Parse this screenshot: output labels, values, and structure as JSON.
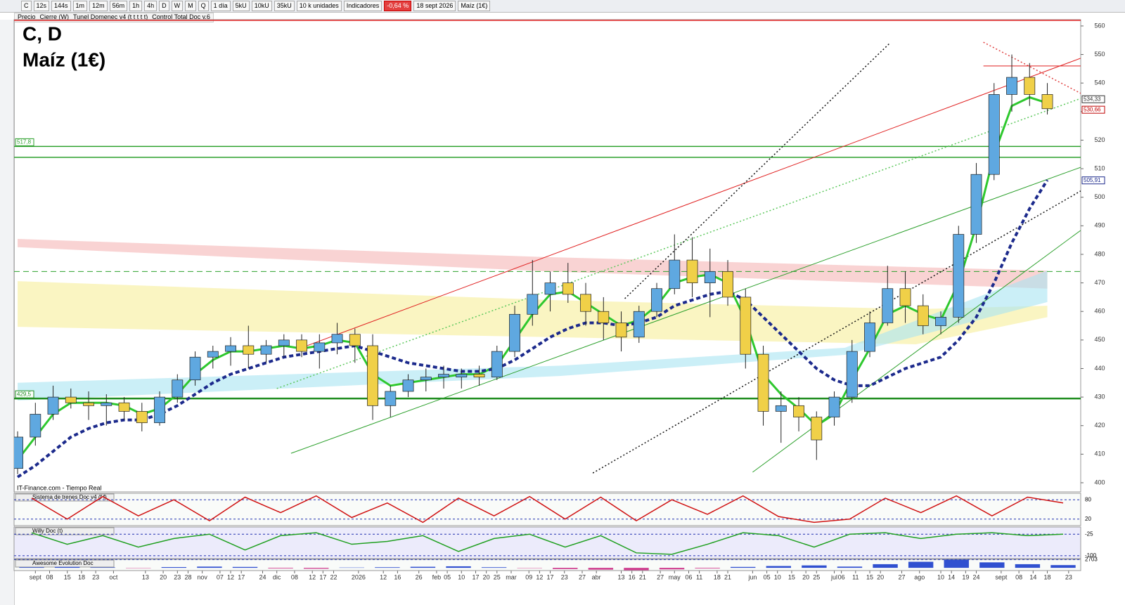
{
  "toolbar": {
    "symbol": "C",
    "timeframes": [
      "12s",
      "144s",
      "1m",
      "12m",
      "56m",
      "1h",
      "4h",
      "D",
      "W",
      "M",
      "Q"
    ],
    "period": "1 día",
    "units": [
      "5kU",
      "10kU",
      "35kU"
    ],
    "units_label": "10 k unidades",
    "indicators": "Indicadores",
    "change": "-0,64 %",
    "date": "18 sept 2026",
    "instrument": "Maíz (1€)"
  },
  "legend_bar": [
    "Precio",
    "Cierre (W)",
    "Tunel Domenec v4 (t t t t t)",
    "Control Total Doc v.6"
  ],
  "watermark": "IT-Finance.com - Tiempo Real",
  "chart_data": {
    "type": "candlestick",
    "title": "C, D",
    "subtitle": "Maíz (1€)",
    "x": [
      0,
      5,
      10,
      15,
      20,
      25,
      30,
      35,
      40,
      45,
      50,
      55,
      60,
      65,
      70,
      75,
      80,
      85,
      90,
      95,
      100,
      105,
      110,
      115,
      120,
      125,
      130,
      135,
      140,
      145,
      150,
      155,
      160,
      165,
      170,
      175,
      180,
      185,
      190,
      195,
      200,
      205,
      210,
      215,
      220,
      225,
      230,
      235,
      240,
      245,
      250,
      255,
      260,
      265,
      270,
      275,
      280,
      285,
      290
    ],
    "open": [
      405,
      416,
      424,
      430,
      428,
      427,
      428,
      425,
      421,
      430,
      436,
      444,
      446,
      448,
      445,
      448,
      450,
      446,
      449,
      452,
      448,
      427,
      432,
      436,
      437,
      437,
      438,
      437,
      446,
      459,
      466,
      470,
      466,
      460,
      456,
      451,
      460,
      468,
      478,
      470,
      474,
      465,
      445,
      425,
      427,
      423,
      423,
      430,
      446,
      456,
      468,
      462,
      455,
      458,
      487,
      508,
      536,
      542,
      536
    ],
    "high": [
      418,
      428,
      434,
      433,
      432,
      431,
      430,
      428,
      432,
      438,
      446,
      448,
      451,
      455,
      450,
      452,
      452,
      452,
      456,
      454,
      452,
      434,
      438,
      440,
      441,
      440,
      441,
      448,
      462,
      478,
      474,
      477,
      470,
      465,
      460,
      462,
      470,
      487,
      486,
      482,
      478,
      468,
      448,
      432,
      430,
      425,
      432,
      450,
      460,
      476,
      474,
      466,
      460,
      490,
      512,
      540,
      550,
      547,
      540
    ],
    "low": [
      403,
      413,
      422,
      426,
      422,
      420,
      422,
      418,
      420,
      428,
      434,
      440,
      441,
      440,
      442,
      444,
      444,
      440,
      445,
      442,
      422,
      423,
      430,
      432,
      433,
      433,
      434,
      436,
      444,
      455,
      460,
      463,
      455,
      450,
      446,
      449,
      458,
      466,
      465,
      458,
      462,
      440,
      420,
      414,
      418,
      408,
      420,
      428,
      444,
      455,
      456,
      452,
      452,
      456,
      484,
      506,
      530,
      532,
      529
    ],
    "close": [
      416,
      424,
      430,
      428,
      427,
      428,
      425,
      421,
      430,
      436,
      444,
      446,
      448,
      445,
      448,
      450,
      446,
      449,
      452,
      448,
      427,
      432,
      436,
      437,
      438,
      438,
      437,
      446,
      459,
      466,
      470,
      466,
      460,
      456,
      451,
      460,
      468,
      478,
      470,
      474,
      465,
      445,
      425,
      427,
      423,
      415,
      430,
      446,
      456,
      468,
      462,
      455,
      458,
      487,
      508,
      536,
      542,
      536,
      531
    ],
    "up_color": "#5fa8e0",
    "down_color": "#f0d048",
    "xlim": [
      -1,
      299.4
    ],
    "ylim": [
      396.8,
      562.2
    ],
    "yticks": [
      400,
      410,
      420,
      430,
      440,
      450,
      460,
      470,
      480,
      490,
      500,
      510,
      520,
      530,
      540,
      550,
      560
    ],
    "xticks": [
      {
        "value": 5,
        "label": "sept"
      },
      {
        "value": 9,
        "label": "08"
      },
      {
        "value": 14,
        "label": "15"
      },
      {
        "value": 18,
        "label": "18"
      },
      {
        "value": 22,
        "label": "23"
      },
      {
        "value": 27,
        "label": "oct"
      },
      {
        "value": 36,
        "label": "13"
      },
      {
        "value": 41,
        "label": "20"
      },
      {
        "value": 45,
        "label": "23"
      },
      {
        "value": 48,
        "label": "28"
      },
      {
        "value": 52,
        "label": "nov"
      },
      {
        "value": 57,
        "label": "07"
      },
      {
        "value": 60,
        "label": "12"
      },
      {
        "value": 63,
        "label": "17"
      },
      {
        "value": 69,
        "label": "24"
      },
      {
        "value": 73,
        "label": "dic"
      },
      {
        "value": 78,
        "label": "08"
      },
      {
        "value": 83,
        "label": "12"
      },
      {
        "value": 86,
        "label": "17"
      },
      {
        "value": 89,
        "label": "22"
      },
      {
        "value": 96,
        "label": "2026"
      },
      {
        "value": 103,
        "label": "12"
      },
      {
        "value": 107,
        "label": "16"
      },
      {
        "value": 113,
        "label": "26"
      },
      {
        "value": 118,
        "label": "feb"
      },
      {
        "value": 121,
        "label": "05"
      },
      {
        "value": 125,
        "label": "10"
      },
      {
        "value": 129,
        "label": "17"
      },
      {
        "value": 132,
        "label": "20"
      },
      {
        "value": 135,
        "label": "25"
      },
      {
        "value": 139,
        "label": "mar"
      },
      {
        "value": 144,
        "label": "09"
      },
      {
        "value": 147,
        "label": "12"
      },
      {
        "value": 150,
        "label": "17"
      },
      {
        "value": 154,
        "label": "23"
      },
      {
        "value": 159,
        "label": "27"
      },
      {
        "value": 163,
        "label": "abr"
      },
      {
        "value": 170,
        "label": "13"
      },
      {
        "value": 173,
        "label": "16"
      },
      {
        "value": 176,
        "label": "21"
      },
      {
        "value": 181,
        "label": "27"
      },
      {
        "value": 185,
        "label": "may"
      },
      {
        "value": 189,
        "label": "06"
      },
      {
        "value": 192,
        "label": "11"
      },
      {
        "value": 197,
        "label": "18"
      },
      {
        "value": 200,
        "label": "21"
      },
      {
        "value": 207,
        "label": "jun"
      },
      {
        "value": 211,
        "label": "05"
      },
      {
        "value": 214,
        "label": "10"
      },
      {
        "value": 218,
        "label": "15"
      },
      {
        "value": 222,
        "label": "20"
      },
      {
        "value": 225,
        "label": "25"
      },
      {
        "value": 230,
        "label": "jul"
      },
      {
        "value": 232,
        "label": "06"
      },
      {
        "value": 236,
        "label": "11"
      },
      {
        "value": 240,
        "label": "15"
      },
      {
        "value": 243,
        "label": "20"
      },
      {
        "value": 249,
        "label": "27"
      },
      {
        "value": 254,
        "label": "ago"
      },
      {
        "value": 260,
        "label": "10"
      },
      {
        "value": 263,
        "label": "14"
      },
      {
        "value": 267,
        "label": "19"
      },
      {
        "value": 270,
        "label": "24"
      },
      {
        "value": 277,
        "label": "sept"
      },
      {
        "value": 282,
        "label": "08"
      },
      {
        "value": 286,
        "label": "14"
      },
      {
        "value": 290,
        "label": "18"
      },
      {
        "value": 296,
        "label": "23"
      }
    ],
    "bands": [
      {
        "color": "#f5b5b5",
        "x": [
          0,
          150,
          290
        ],
        "upper": [
          485.4,
          479,
          474.3
        ],
        "lower": [
          482.5,
          474,
          468
        ]
      },
      {
        "color": "#f7ef9a",
        "x": [
          0,
          150,
          253,
          290
        ],
        "upper": [
          470.6,
          464,
          460.8,
          462
        ],
        "lower": [
          454.6,
          451,
          448.5,
          458
        ]
      },
      {
        "color": "#a8e4f2",
        "x": [
          0,
          153,
          233,
          290
        ],
        "upper": [
          435,
          441,
          447.3,
          474.3
        ],
        "lower": [
          428.8,
          437.4,
          444.8,
          463.3
        ]
      }
    ],
    "overlays": [
      {
        "color": "#2ec82e",
        "width": 3,
        "dash": false,
        "values": [
          408,
          416,
          424,
          428,
          428,
          428,
          427,
          424,
          426,
          431,
          438,
          443,
          446,
          446,
          447,
          448,
          447,
          448,
          450,
          449,
          438,
          434,
          435,
          436,
          437,
          438,
          438,
          441,
          450,
          459,
          466,
          467,
          463,
          459,
          455,
          457,
          462,
          470,
          472,
          473,
          470,
          457,
          438,
          431,
          426,
          420,
          424,
          436,
          447,
          459,
          462,
          459,
          457,
          470,
          490,
          515,
          532,
          535,
          533
        ]
      },
      {
        "color": "#1c2a8c",
        "width": 4,
        "dash": true,
        "values": [
          402,
          406,
          411,
          416,
          419,
          421,
          422,
          422,
          424,
          427,
          431,
          435,
          438,
          440,
          442,
          444,
          445,
          446,
          447,
          448,
          446,
          444,
          442,
          441,
          440,
          439,
          439,
          440,
          443,
          447,
          451,
          454,
          456,
          456,
          455,
          456,
          458,
          462,
          464,
          466,
          467,
          464,
          458,
          452,
          446,
          440,
          436,
          434,
          434,
          437,
          440,
          442,
          444,
          450,
          458,
          470,
          484,
          496,
          506
        ]
      }
    ],
    "trendlines": [
      {
        "color": "#e02020",
        "dash": false,
        "x": [
          80,
          299.4
        ],
        "y": [
          447.3,
          548.7
        ]
      },
      {
        "color": "#2ca02c",
        "dash": false,
        "x": [
          77,
          299.4
        ],
        "y": [
          410.3,
          510.5
        ]
      },
      {
        "color": "#2ca02c",
        "dash": false,
        "x": [
          207,
          299.4
        ],
        "y": [
          403.7,
          488.4
        ]
      },
      {
        "color": "#5cc85c",
        "dash": true,
        "x": [
          73,
          299.4
        ],
        "y": [
          433,
          534.6
        ]
      },
      {
        "color": "#111111",
        "dash": true,
        "x": [
          171,
          245.5
        ],
        "y": [
          464.5,
          553.8
        ]
      },
      {
        "color": "#111111",
        "dash": true,
        "x": [
          162,
          299.4
        ],
        "y": [
          403.4,
          502.2
        ]
      },
      {
        "color": "#e04040",
        "dash": true,
        "x": [
          272,
          299.4
        ],
        "y": [
          554.3,
          536.4
        ]
      },
      {
        "color": "#e02020",
        "dash": false,
        "x": [
          272,
          299.4
        ],
        "y": [
          546,
          546
        ]
      }
    ],
    "levels": [
      {
        "value": 562,
        "color": "#e02020",
        "width": 1.5
      },
      {
        "value": 517.8,
        "label": "517,8",
        "color": "#2ca02c",
        "width": 1.5
      },
      {
        "value": 514,
        "color": "#2ca02c",
        "width": 1.5
      },
      {
        "value": 474,
        "color": "#2ca02c",
        "width": 1,
        "dash": true
      },
      {
        "value": 429.5,
        "label": "429,5",
        "color": "#1e8c1e",
        "width": 2.5
      }
    ],
    "price_labels": [
      {
        "value": 534.33,
        "label": "534,33",
        "color": "#333333"
      },
      {
        "value": 530.66,
        "label": "530,66",
        "color": "#c00000"
      },
      {
        "value": 505.91,
        "label": "505,91",
        "color": "#1c2a8c"
      }
    ],
    "panels": [
      {
        "title": "Sistema de trenes Doc v4 (f f)",
        "type": "line",
        "color": "#d01010",
        "ylim": [
          0,
          100
        ],
        "yticks": [
          20,
          80
        ],
        "values": [
          85,
          20,
          90,
          30,
          80,
          15,
          88,
          40,
          92,
          25,
          70,
          10,
          85,
          30,
          90,
          20,
          88,
          15,
          80,
          35,
          92,
          28,
          10,
          20,
          85,
          40,
          92,
          30,
          88,
          70
        ]
      },
      {
        "title": "Willy Doc (t)",
        "type": "line",
        "color": "#20a020",
        "ylim": [
          -110,
          0
        ],
        "yticks": [
          -25,
          -100
        ],
        "values": [
          -20,
          -60,
          -30,
          -70,
          -40,
          -25,
          -80,
          -30,
          -20,
          -60,
          -50,
          -30,
          -85,
          -40,
          -25,
          -70,
          -30,
          -90,
          -95,
          -60,
          -20,
          -30,
          -70,
          -25,
          -20,
          -40,
          -25,
          -20,
          -30,
          -25
        ]
      },
      {
        "title": "Awesome Evolution Doc",
        "type": "histogram",
        "color": "#3050d0",
        "ylim": [
          -900,
          2800
        ],
        "yticks": [
          {
            "value": 2703,
            "label": "2703"
          }
        ],
        "values": [
          200,
          300,
          150,
          -100,
          250,
          400,
          300,
          -200,
          -300,
          100,
          200,
          350,
          500,
          200,
          -100,
          -400,
          -600,
          -800,
          -500,
          -200,
          300,
          600,
          800,
          400,
          1200,
          2000,
          2703,
          1800,
          1200,
          900
        ]
      }
    ]
  }
}
